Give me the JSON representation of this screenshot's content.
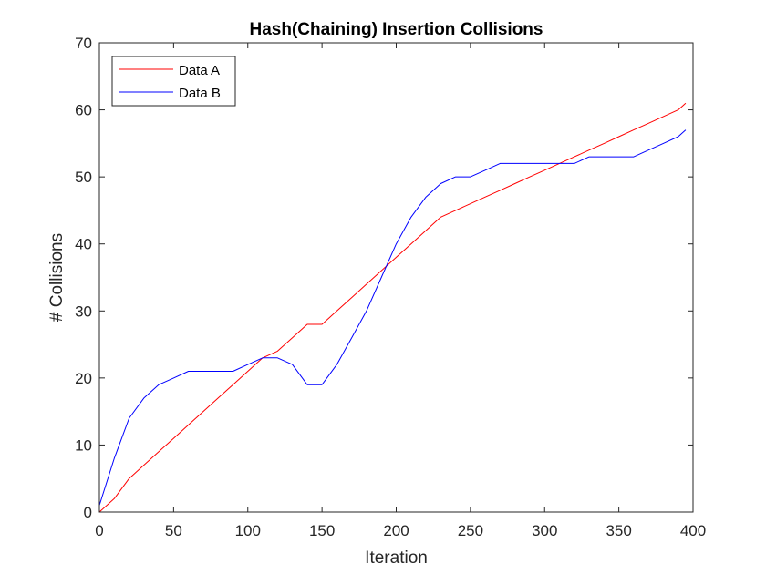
{
  "chart_data": {
    "type": "line",
    "title": "Hash(Chaining) Insertion Collisions",
    "xlabel": "Iteration",
    "ylabel": "# Collisions",
    "xlim": [
      0,
      400
    ],
    "ylim": [
      0,
      70
    ],
    "xticks": [
      "0",
      "50",
      "100",
      "150",
      "200",
      "250",
      "300",
      "350",
      "400"
    ],
    "yticks": [
      "0",
      "10",
      "20",
      "30",
      "40",
      "50",
      "60",
      "70"
    ],
    "grid": false,
    "legend_position": "top-left",
    "x": [
      0,
      10,
      20,
      30,
      40,
      50,
      60,
      70,
      80,
      90,
      100,
      110,
      120,
      130,
      140,
      150,
      160,
      170,
      180,
      190,
      200,
      210,
      220,
      230,
      240,
      250,
      260,
      270,
      280,
      290,
      300,
      310,
      320,
      330,
      340,
      350,
      360,
      370,
      380,
      390,
      395
    ],
    "series": [
      {
        "name": "Data A",
        "color": "#ff0000",
        "values": [
          0,
          2,
          5,
          7,
          9,
          11,
          13,
          15,
          17,
          19,
          21,
          23,
          24,
          26,
          28,
          28,
          30,
          32,
          34,
          36,
          38,
          40,
          42,
          44,
          45,
          46,
          47,
          48,
          49,
          50,
          51,
          52,
          53,
          54,
          55,
          56,
          57,
          58,
          59,
          60,
          61
        ]
      },
      {
        "name": "Data B",
        "color": "#0000ff",
        "values": [
          1,
          8,
          14,
          17,
          19,
          20,
          21,
          21,
          21,
          21,
          22,
          23,
          23,
          22,
          19,
          19,
          22,
          26,
          30,
          35,
          40,
          44,
          47,
          49,
          50,
          50,
          51,
          52,
          52,
          52,
          52,
          52,
          52,
          53,
          53,
          53,
          53,
          54,
          55,
          56,
          57
        ]
      }
    ]
  }
}
